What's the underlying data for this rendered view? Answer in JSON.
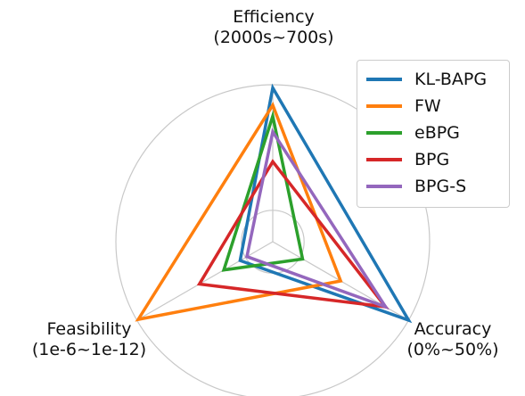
{
  "chart_data": {
    "type": "radar",
    "axes": [
      {
        "key": "efficiency",
        "label": "Efficiency",
        "sublabel": "(2000s~700s)"
      },
      {
        "key": "accuracy",
        "label": "Accuracy",
        "sublabel": "(0%~50%)"
      },
      {
        "key": "feasibility",
        "label": "Feasibility",
        "sublabel": "(1e-6~1e-12)"
      }
    ],
    "radial_range": [
      0,
      1
    ],
    "grid": true,
    "legend_position": "top-right",
    "series": [
      {
        "name": "KL-BAPG",
        "color": "#1f77b4",
        "values": {
          "efficiency": 0.98,
          "accuracy": 1.0,
          "feasibility": 0.24
        }
      },
      {
        "name": "FW",
        "color": "#ff7f0e",
        "values": {
          "efficiency": 0.87,
          "accuracy": 0.5,
          "feasibility": 0.99
        }
      },
      {
        "name": "eBPG",
        "color": "#2ca02c",
        "values": {
          "efficiency": 0.8,
          "accuracy": 0.22,
          "feasibility": 0.36
        }
      },
      {
        "name": "BPG",
        "color": "#d62728",
        "values": {
          "efficiency": 0.51,
          "accuracy": 0.83,
          "feasibility": 0.54
        }
      },
      {
        "name": "BPG-S",
        "color": "#9467bd",
        "values": {
          "efficiency": 0.7,
          "accuracy": 0.83,
          "feasibility": 0.19
        }
      }
    ]
  }
}
